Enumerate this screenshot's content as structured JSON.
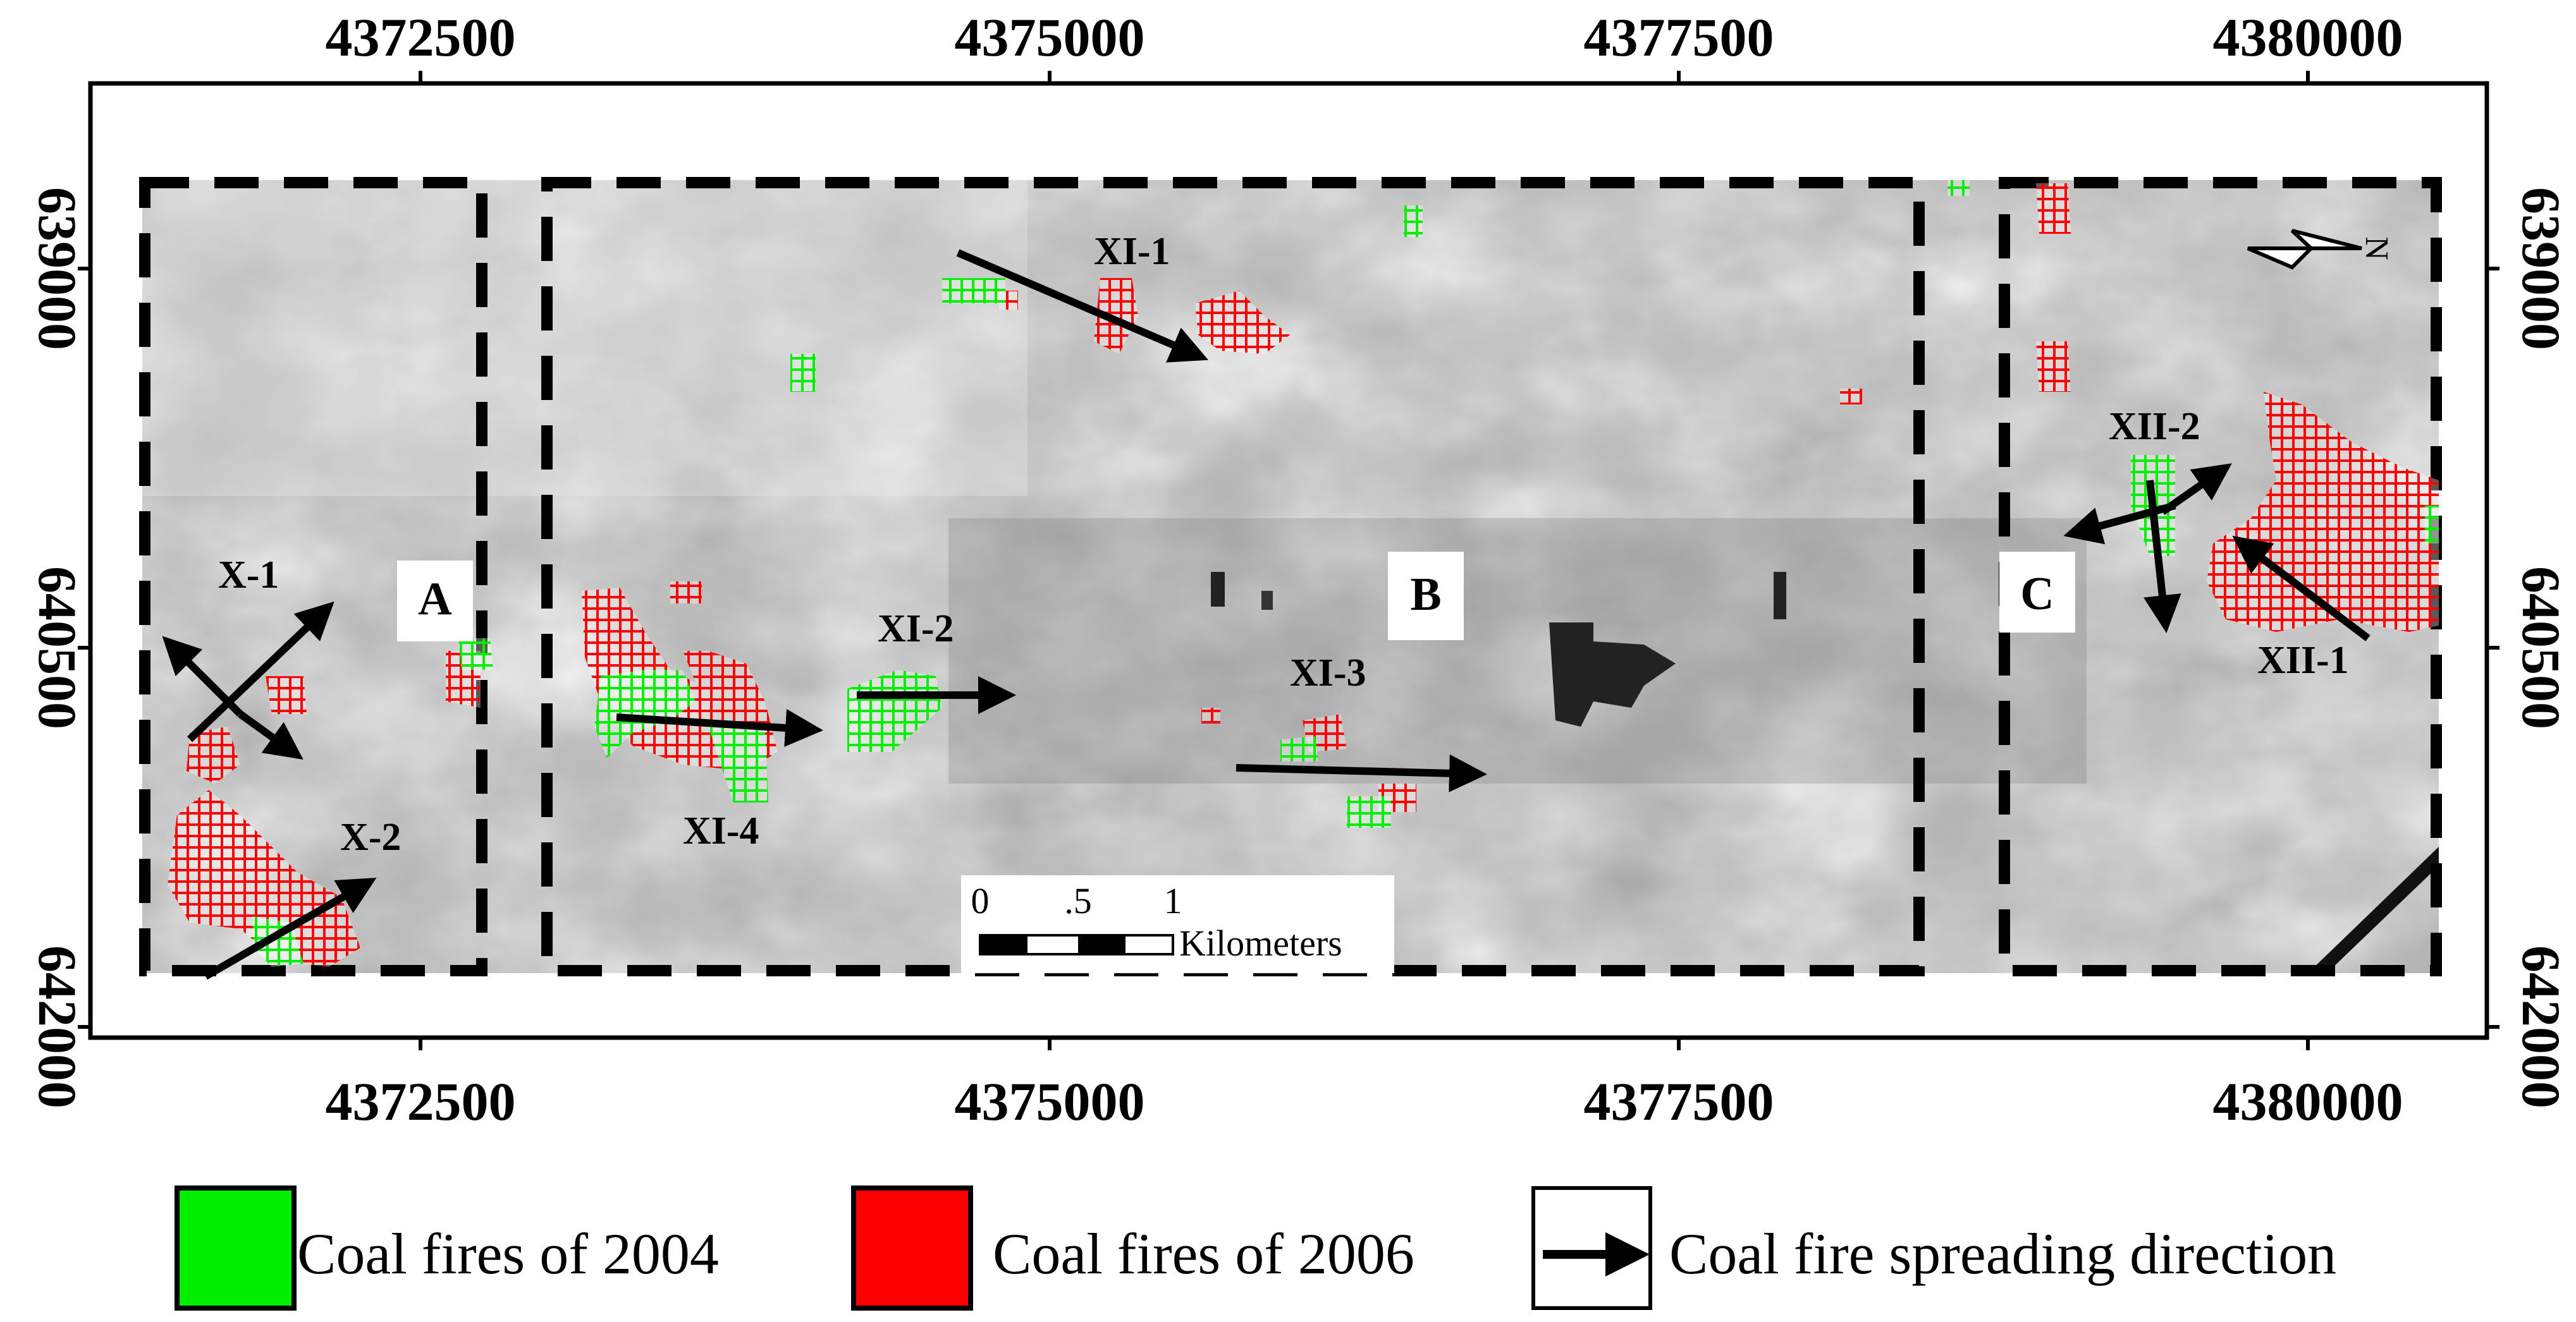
{
  "map": {
    "top_axis_labels": [
      "4372500",
      "4375000",
      "4377500",
      "4380000"
    ],
    "bottom_axis_labels": [
      "4372500",
      "4375000",
      "4377500",
      "4380000"
    ],
    "left_axis_labels": [
      "639000",
      "640500",
      "642000"
    ],
    "right_axis_labels": [
      "639000",
      "640500",
      "642000"
    ],
    "north_label": "N",
    "boxes": [
      {
        "label": "A"
      },
      {
        "label": "B"
      },
      {
        "label": "C"
      }
    ],
    "zones": [
      {
        "label": "X-1"
      },
      {
        "label": "X-2"
      },
      {
        "label": "XI-1"
      },
      {
        "label": "XI-2"
      },
      {
        "label": "XI-3"
      },
      {
        "label": "XI-4"
      },
      {
        "label": "XII-1"
      },
      {
        "label": "XII-2"
      }
    ],
    "scale_bar": {
      "ticks": [
        "0",
        ".5",
        "1"
      ],
      "unit": "Kilometers"
    },
    "colors": {
      "fire_2004": "#00ee00",
      "fire_2006": "#ff0000",
      "arrow": "#000000"
    }
  },
  "legend": [
    {
      "label": "Coal fires of 2004",
      "swatch": "green-square"
    },
    {
      "label": "Coal fires of 2006",
      "swatch": "red-square"
    },
    {
      "label": "Coal fire spreading direction",
      "swatch": "arrow"
    }
  ]
}
